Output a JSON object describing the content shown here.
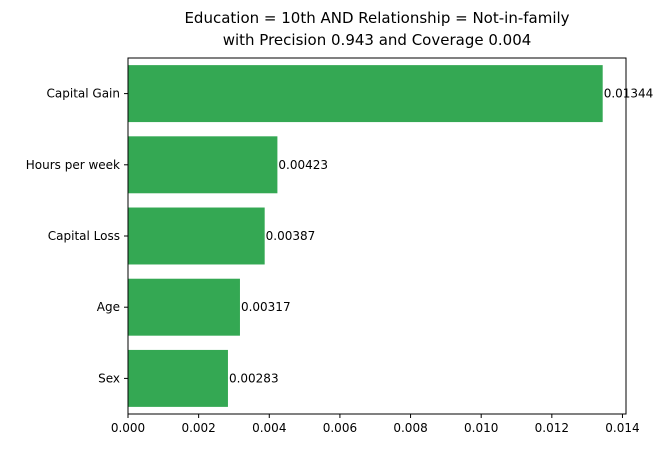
{
  "chart_data": {
    "type": "bar",
    "orientation": "horizontal",
    "title": "Education = 10th AND Relationship = Not-in-family",
    "subtitle": "with Precision 0.943 and Coverage 0.004",
    "xlabel": "",
    "ylabel": "",
    "categories": [
      "Capital Gain",
      "Hours per week",
      "Capital Loss",
      "Age",
      "Sex"
    ],
    "values": [
      0.01344,
      0.00423,
      0.00387,
      0.00317,
      0.00283
    ],
    "data_labels": [
      "0.01344",
      "0.00423",
      "0.00387",
      "0.00317",
      "0.00283"
    ],
    "xlim": [
      0,
      0.0141
    ],
    "xticks": [
      0,
      0.002,
      0.004,
      0.006,
      0.008,
      0.01,
      0.012,
      0.014
    ],
    "xtick_labels": [
      "0.000",
      "0.002",
      "0.004",
      "0.006",
      "0.008",
      "0.010",
      "0.012",
      "0.014"
    ],
    "grid": false,
    "bar_color": "#34a853"
  }
}
